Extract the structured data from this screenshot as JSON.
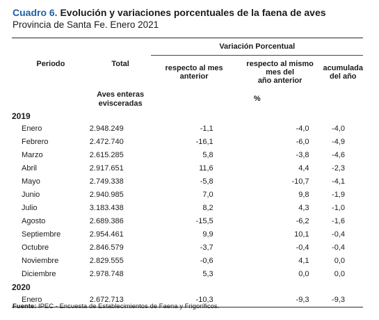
{
  "title": {
    "label": "Cuadro 6.",
    "text": " Evolución y variaciones porcentuales de la faena de aves",
    "subtitle": "Provincia de Santa Fe. Enero 2021"
  },
  "headers": {
    "periodo": "Periodo",
    "total": "Total",
    "variacion": "Variación Porcentual",
    "mes_anterior": [
      "respecto al mes",
      "anterior"
    ],
    "mismo_mes": [
      "respecto al mismo",
      "mes del",
      "año anterior"
    ],
    "acumulada": [
      "acumulada",
      "del año"
    ],
    "unit_total": [
      "Aves enteras",
      "evisceradas"
    ],
    "unit_percent": "%"
  },
  "years": [
    {
      "label": "2019",
      "rows": [
        {
          "month": "Enero",
          "total": "2.948.249",
          "mes": "-1,1",
          "anio": "-4,0",
          "acum": "-4,0"
        },
        {
          "month": "Febrero",
          "total": "2.472.740",
          "mes": "-16,1",
          "anio": "-6,0",
          "acum": "-4,9"
        },
        {
          "month": "Marzo",
          "total": "2.615.285",
          "mes": "5,8",
          "anio": "-3,8",
          "acum": "-4,6"
        },
        {
          "month": "Abril",
          "total": "2.917.651",
          "mes": "11,6",
          "anio": "4,4",
          "acum": "-2,3"
        },
        {
          "month": "Mayo",
          "total": "2.749.338",
          "mes": "-5,8",
          "anio": "-10,7",
          "acum": "-4,1"
        },
        {
          "month": "Junio",
          "total": "2.940.985",
          "mes": "7,0",
          "anio": "9,8",
          "acum": "-1,9"
        },
        {
          "month": "Julio",
          "total": "3.183.438",
          "mes": "8,2",
          "anio": "4,3",
          "acum": "-1,0"
        },
        {
          "month": "Agosto",
          "total": "2.689.386",
          "mes": "-15,5",
          "anio": "-6,2",
          "acum": "-1,6"
        },
        {
          "month": "Septiembre",
          "total": "2.954.461",
          "mes": "9,9",
          "anio": "10,1",
          "acum": "-0,4"
        },
        {
          "month": "Octubre",
          "total": "2.846.579",
          "mes": "-3,7",
          "anio": "-0,4",
          "acum": "-0,4"
        },
        {
          "month": "Noviembre",
          "total": "2.829.555",
          "mes": "-0,6",
          "anio": "4,1",
          "acum": "0,0"
        },
        {
          "month": "Diciembre",
          "total": "2.978.748",
          "mes": "5,3",
          "anio": "0,0",
          "acum": "0,0"
        }
      ]
    },
    {
      "label": "2020",
      "rows": [
        {
          "month": "Enero",
          "total": "2.672.713",
          "mes": "-10,3",
          "anio": "-9,3",
          "acum": "-9,3"
        }
      ]
    }
  ],
  "source": {
    "label": "Fuente:",
    "text": " IPEC - Encuesta de Establecimientos de Faena y Frigoríficos."
  }
}
